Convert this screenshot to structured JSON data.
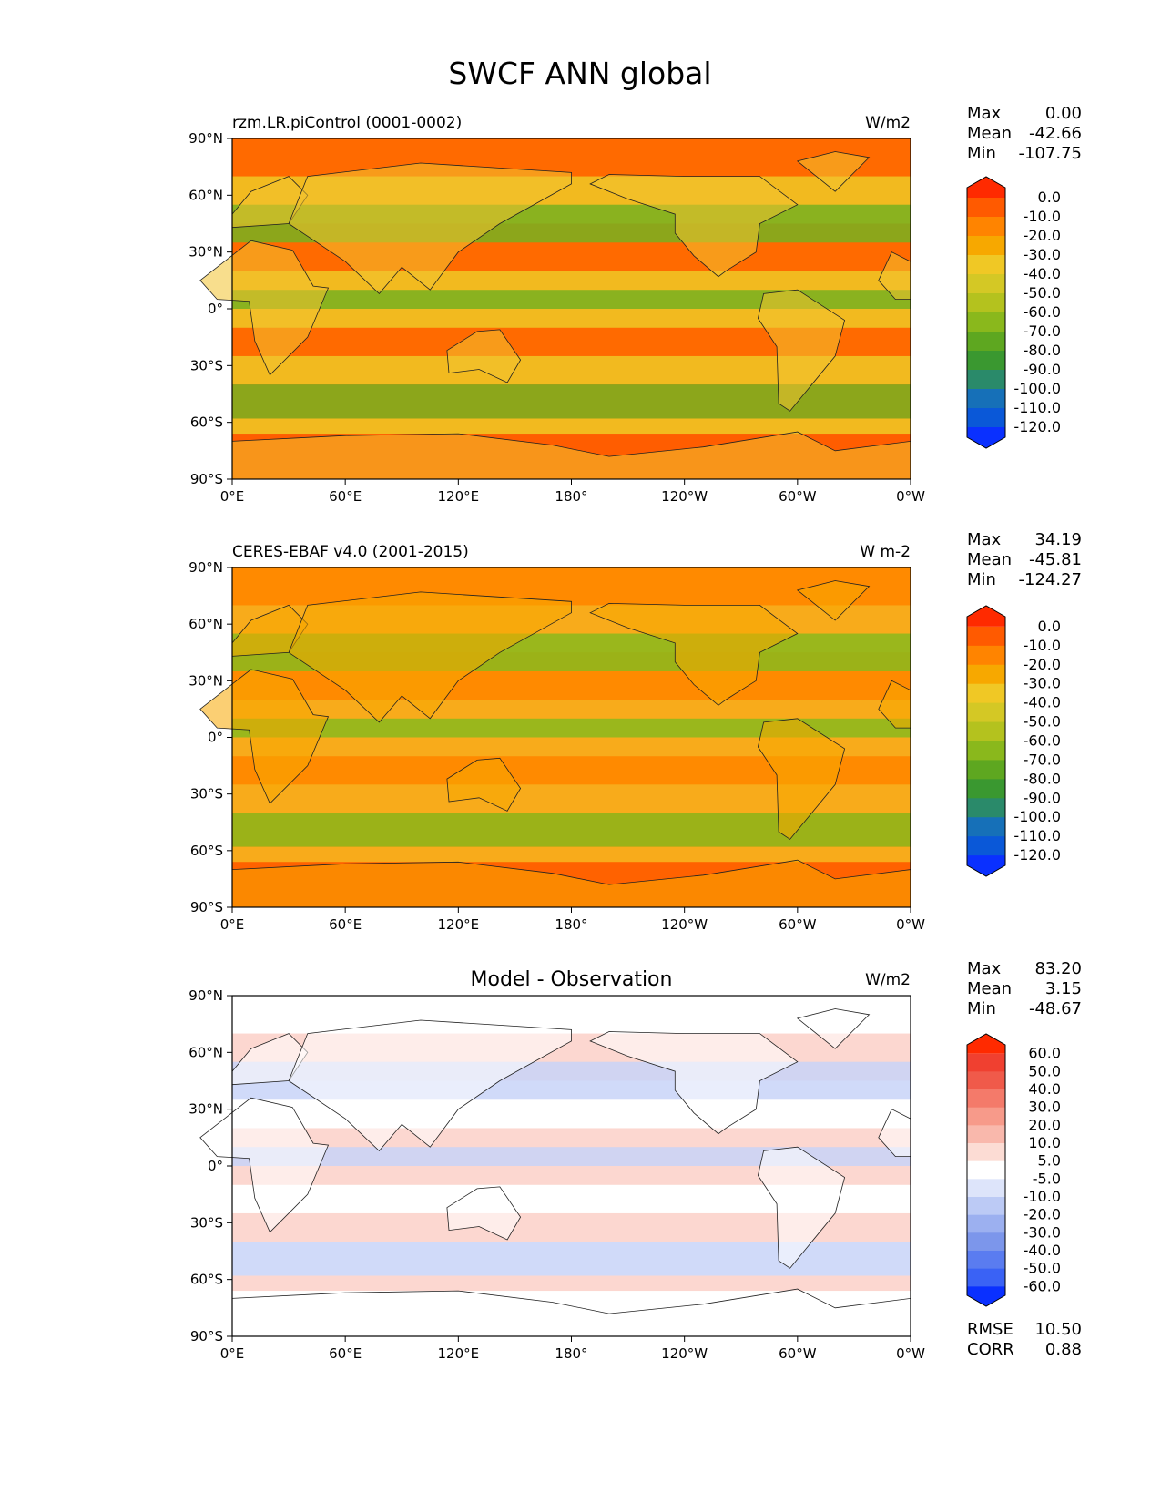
{
  "figure": {
    "title": "SWCF ANN global"
  },
  "chart_data": [
    {
      "type": "heatmap",
      "panel": "model",
      "title_left": "rzm.LR.piControl (0001-0002)",
      "title_center": "",
      "units": "W/m2",
      "stats": [
        {
          "label": "Max",
          "value": "0.00"
        },
        {
          "label": "Mean",
          "value": "-42.66"
        },
        {
          "label": "Min",
          "value": "-107.75"
        }
      ],
      "extra_stats": [],
      "xlim": [
        0,
        360
      ],
      "ylim": [
        -90,
        90
      ],
      "xticks": [
        "0°E",
        "60°E",
        "120°E",
        "180°",
        "120°W",
        "60°W",
        "0°W"
      ],
      "yticks": [
        "90°N",
        "60°N",
        "30°N",
        "0°",
        "30°S",
        "60°S",
        "90°S"
      ],
      "colorbar": {
        "labels": [
          "0.0",
          "-10.0",
          "-20.0",
          "-30.0",
          "-40.0",
          "-50.0",
          "-60.0",
          "-70.0",
          "-80.0",
          "-90.0",
          "-100.0",
          "-110.0",
          "-120.0"
        ],
        "colors": [
          "#ff2a00",
          "#ff5a00",
          "#ff8400",
          "#f7a800",
          "#f0c825",
          "#d4c825",
          "#b4c21e",
          "#8ab81c",
          "#5ea720",
          "#3a9830",
          "#2a8a6a",
          "#1670b8",
          "#0a58d8",
          "#0a30ff"
        ]
      },
      "colors": {
        "bg": "#ff6a00",
        "band_mid": "#f0c825",
        "band_wet": "#78b020",
        "land": "#f3c330",
        "ice": "#ff5a00"
      }
    },
    {
      "type": "heatmap",
      "panel": "observation",
      "title_left": "CERES-EBAF v4.0 (2001-2015)",
      "title_center": "",
      "units": "W m-2",
      "stats": [
        {
          "label": "Max",
          "value": "34.19"
        },
        {
          "label": "Mean",
          "value": "-45.81"
        },
        {
          "label": "Min",
          "value": "-124.27"
        }
      ],
      "extra_stats": [],
      "xlim": [
        0,
        360
      ],
      "ylim": [
        -90,
        90
      ],
      "xticks": [
        "0°E",
        "60°E",
        "120°E",
        "180°",
        "120°W",
        "60°W",
        "0°W"
      ],
      "yticks": [
        "90°N",
        "60°N",
        "30°N",
        "0°",
        "30°S",
        "60°S",
        "90°S"
      ],
      "colorbar": {
        "labels": [
          "0.0",
          "-10.0",
          "-20.0",
          "-30.0",
          "-40.0",
          "-50.0",
          "-60.0",
          "-70.0",
          "-80.0",
          "-90.0",
          "-100.0",
          "-110.0",
          "-120.0"
        ],
        "colors": [
          "#ff2a00",
          "#ff5a00",
          "#ff8400",
          "#f7a800",
          "#f0c825",
          "#d4c825",
          "#b4c21e",
          "#8ab81c",
          "#5ea720",
          "#3a9830",
          "#2a8a6a",
          "#1670b8",
          "#0a58d8",
          "#0a30ff"
        ]
      },
      "colors": {
        "bg": "#ff8a00",
        "band_mid": "#f7b020",
        "band_wet": "#8ab81c",
        "land": "#f7a800",
        "ice": "#ff5a00"
      }
    },
    {
      "type": "heatmap",
      "panel": "difference",
      "title_left": "",
      "title_center": "Model - Observation",
      "units": "W/m2",
      "stats": [
        {
          "label": "Max",
          "value": "83.20"
        },
        {
          "label": "Mean",
          "value": "3.15"
        },
        {
          "label": "Min",
          "value": "-48.67"
        }
      ],
      "extra_stats": [
        {
          "label": "RMSE",
          "value": "10.50"
        },
        {
          "label": "CORR",
          "value": "0.88"
        }
      ],
      "xlim": [
        0,
        360
      ],
      "ylim": [
        -90,
        90
      ],
      "xticks": [
        "0°E",
        "60°E",
        "120°E",
        "180°",
        "120°W",
        "60°W",
        "0°W"
      ],
      "yticks": [
        "90°N",
        "60°N",
        "30°N",
        "0°",
        "30°S",
        "60°S",
        "90°S"
      ],
      "colorbar": {
        "labels": [
          "60.0",
          "50.0",
          "40.0",
          "30.0",
          "20.0",
          "10.0",
          "5.0",
          "-5.0",
          "-10.0",
          "-20.0",
          "-30.0",
          "-40.0",
          "-50.0",
          "-60.0"
        ],
        "colors": [
          "#ff2a00",
          "#f04030",
          "#f05a4a",
          "#f47a6a",
          "#f79a8a",
          "#f9b8ac",
          "#fcdcd4",
          "#ffffff",
          "#dde4fa",
          "#bccaf5",
          "#9cb0f0",
          "#7c96eb",
          "#5a7cf0",
          "#3a62f5",
          "#0a30ff"
        ]
      },
      "colors": {
        "bg": "#ffffff",
        "band_mid": "#fbd0c8",
        "band_wet": "#c8d4f8",
        "land": "#ffffff",
        "ice": "#ffffff"
      }
    }
  ]
}
